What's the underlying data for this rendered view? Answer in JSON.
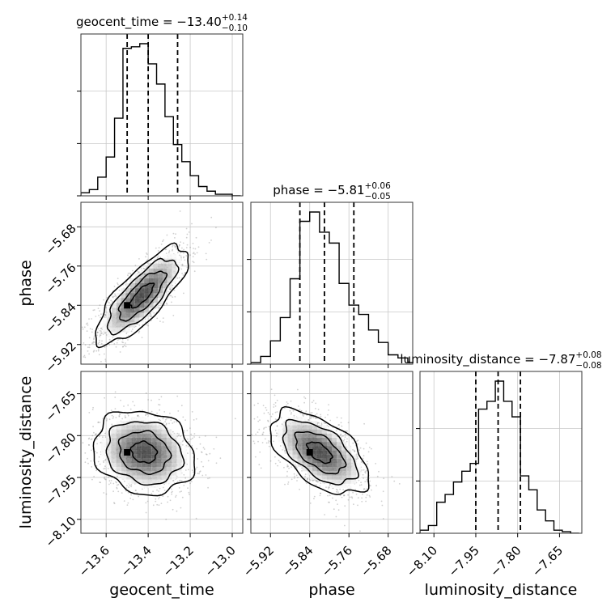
{
  "chart_data": {
    "type": "corner",
    "parameters": [
      {
        "name": "geocent_time",
        "axis_label": "geocent_time",
        "title": {
          "prefix": "geocent_time = ",
          "median": "−13.40",
          "plus": "+0.14",
          "minus": "−0.10"
        },
        "range": [
          -13.72,
          -12.95
        ],
        "ticks": [
          -13.6,
          -13.4,
          -13.2,
          -13.0
        ],
        "tick_labels": [
          "−13.6",
          "−13.4",
          "−13.2",
          "−13.0"
        ],
        "quantile_lines": [
          -13.5,
          -13.4,
          -13.26
        ],
        "hist_bin_edges": [
          -13.72,
          -13.68,
          -13.64,
          -13.6,
          -13.56,
          -13.52,
          -13.48,
          -13.44,
          -13.4,
          -13.36,
          -13.32,
          -13.28,
          -13.24,
          -13.2,
          -13.16,
          -13.12,
          -13.08,
          -13.04,
          -13.0,
          -12.96
        ],
        "hist_values": [
          0.02,
          0.04,
          0.12,
          0.25,
          0.5,
          0.95,
          0.96,
          0.98,
          0.85,
          0.72,
          0.51,
          0.33,
          0.22,
          0.13,
          0.06,
          0.03,
          0.01,
          0.01,
          0.0
        ]
      },
      {
        "name": "phase",
        "axis_label": "phase",
        "title": {
          "prefix": "phase = ",
          "median": "−5.81",
          "plus": "+0.06",
          "minus": "−0.05"
        },
        "range": [
          -5.96,
          -5.63
        ],
        "ticks": [
          -5.92,
          -5.84,
          -5.76,
          -5.68
        ],
        "tick_labels": [
          "−5.92",
          "−5.84",
          "−5.76",
          "−5.68"
        ],
        "quantile_lines": [
          -5.86,
          -5.81,
          -5.75
        ],
        "hist_bin_edges": [
          -5.96,
          -5.94,
          -5.92,
          -5.9,
          -5.88,
          -5.86,
          -5.84,
          -5.82,
          -5.8,
          -5.78,
          -5.76,
          -5.74,
          -5.72,
          -5.7,
          -5.68,
          -5.66,
          -5.64,
          -5.62
        ],
        "hist_values": [
          0.01,
          0.05,
          0.15,
          0.3,
          0.55,
          0.92,
          0.98,
          0.85,
          0.78,
          0.52,
          0.38,
          0.32,
          0.22,
          0.14,
          0.06,
          0.04,
          0.01
        ]
      },
      {
        "name": "luminosity_distance",
        "axis_label": "luminosity_distance",
        "title": {
          "prefix": "luminosity_distance = ",
          "median": "−7.87",
          "plus": "+0.08",
          "minus": "−0.08"
        },
        "range": [
          -8.15,
          -7.57
        ],
        "ticks": [
          -8.1,
          -7.95,
          -7.8,
          -7.65
        ],
        "tick_labels": [
          "−8.10",
          "−7.95",
          "−7.80",
          "−7.65"
        ],
        "quantile_lines": [
          -7.95,
          -7.87,
          -7.79
        ],
        "hist_bin_edges": [
          -8.15,
          -8.12,
          -8.09,
          -8.06,
          -8.03,
          -8.0,
          -7.97,
          -7.94,
          -7.91,
          -7.88,
          -7.85,
          -7.82,
          -7.79,
          -7.76,
          -7.73,
          -7.7,
          -7.67,
          -7.64,
          -7.61,
          -7.58
        ],
        "hist_values": [
          0.02,
          0.05,
          0.2,
          0.25,
          0.33,
          0.4,
          0.45,
          0.8,
          0.85,
          0.98,
          0.85,
          0.75,
          0.37,
          0.28,
          0.15,
          0.08,
          0.02,
          0.01,
          0.0
        ]
      }
    ],
    "pairs": [
      {
        "x": "geocent_time",
        "y": "phase",
        "mean": [
          -13.43,
          -5.82
        ],
        "sd": [
          0.11,
          0.05
        ],
        "corr": 0.78,
        "peak": [
          -13.5,
          -5.84
        ]
      },
      {
        "x": "geocent_time",
        "y": "luminosity_distance",
        "mean": [
          -13.42,
          -7.86
        ],
        "sd": [
          0.12,
          0.075
        ],
        "corr": -0.15,
        "peak": [
          -13.5,
          -7.86
        ]
      },
      {
        "x": "phase",
        "y": "luminosity_distance",
        "mean": [
          -5.82,
          -7.86
        ],
        "sd": [
          0.05,
          0.075
        ],
        "corr": -0.55,
        "peak": [
          -5.84,
          -7.86
        ]
      }
    ],
    "contour_levels_sigma": [
      0.5,
      1.0,
      1.5,
      2.0
    ],
    "hist_color": "#000000",
    "contour_color": "#000000",
    "grid": true
  }
}
